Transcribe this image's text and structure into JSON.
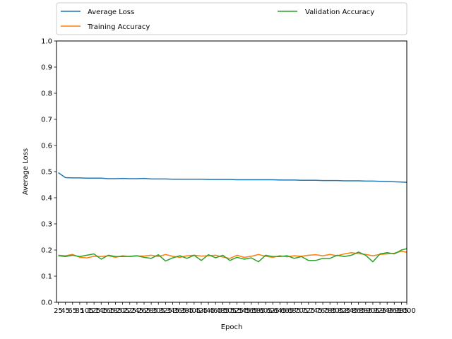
{
  "chart_data": {
    "type": "line",
    "title": "",
    "xlabel": "Epoch",
    "ylabel": "Average Loss",
    "xlim": [
      20,
      1000
    ],
    "ylim": [
      0.0,
      1.0
    ],
    "yticks": [
      "0.0",
      "0.1",
      "0.2",
      "0.3",
      "0.4",
      "0.5",
      "0.6",
      "0.7",
      "0.8",
      "0.9",
      "1.0"
    ],
    "grid": false,
    "legend_placement": "top, above plot",
    "x": [
      25,
      45,
      65,
      85,
      105,
      125,
      145,
      165,
      185,
      205,
      225,
      245,
      265,
      285,
      305,
      325,
      345,
      365,
      385,
      405,
      425,
      445,
      465,
      485,
      505,
      525,
      545,
      565,
      585,
      605,
      625,
      645,
      665,
      685,
      705,
      725,
      745,
      765,
      785,
      805,
      825,
      845,
      865,
      885,
      905,
      925,
      945,
      965,
      985,
      1000
    ],
    "series": [
      {
        "name": "Average Loss",
        "color": "#1f77b4",
        "values": [
          0.496,
          0.477,
          0.476,
          0.476,
          0.475,
          0.475,
          0.475,
          0.473,
          0.473,
          0.474,
          0.473,
          0.473,
          0.474,
          0.472,
          0.472,
          0.472,
          0.471,
          0.471,
          0.471,
          0.471,
          0.471,
          0.47,
          0.47,
          0.47,
          0.47,
          0.469,
          0.469,
          0.469,
          0.469,
          0.469,
          0.469,
          0.468,
          0.468,
          0.468,
          0.467,
          0.467,
          0.467,
          0.466,
          0.466,
          0.466,
          0.465,
          0.465,
          0.465,
          0.464,
          0.464,
          0.463,
          0.462,
          0.461,
          0.46,
          0.459
        ]
      },
      {
        "name": "Training Accuracy",
        "color": "#ff7f0e",
        "values": [
          0.18,
          0.178,
          0.183,
          0.172,
          0.17,
          0.176,
          0.175,
          0.178,
          0.172,
          0.178,
          0.175,
          0.177,
          0.177,
          0.18,
          0.175,
          0.183,
          0.176,
          0.172,
          0.178,
          0.18,
          0.177,
          0.178,
          0.18,
          0.173,
          0.168,
          0.18,
          0.172,
          0.176,
          0.183,
          0.176,
          0.172,
          0.178,
          0.174,
          0.178,
          0.176,
          0.18,
          0.182,
          0.178,
          0.183,
          0.178,
          0.185,
          0.19,
          0.186,
          0.183,
          0.178,
          0.183,
          0.185,
          0.188,
          0.195,
          0.192
        ]
      },
      {
        "name": "Validation Accuracy",
        "color": "#2ca02c",
        "values": [
          0.178,
          0.175,
          0.18,
          0.175,
          0.18,
          0.185,
          0.165,
          0.18,
          0.175,
          0.175,
          0.176,
          0.178,
          0.172,
          0.168,
          0.182,
          0.158,
          0.17,
          0.178,
          0.168,
          0.18,
          0.16,
          0.182,
          0.17,
          0.18,
          0.16,
          0.172,
          0.165,
          0.17,
          0.155,
          0.18,
          0.175,
          0.175,
          0.178,
          0.168,
          0.175,
          0.16,
          0.16,
          0.168,
          0.168,
          0.18,
          0.175,
          0.18,
          0.192,
          0.18,
          0.155,
          0.185,
          0.19,
          0.185,
          0.2,
          0.205
        ]
      }
    ]
  }
}
